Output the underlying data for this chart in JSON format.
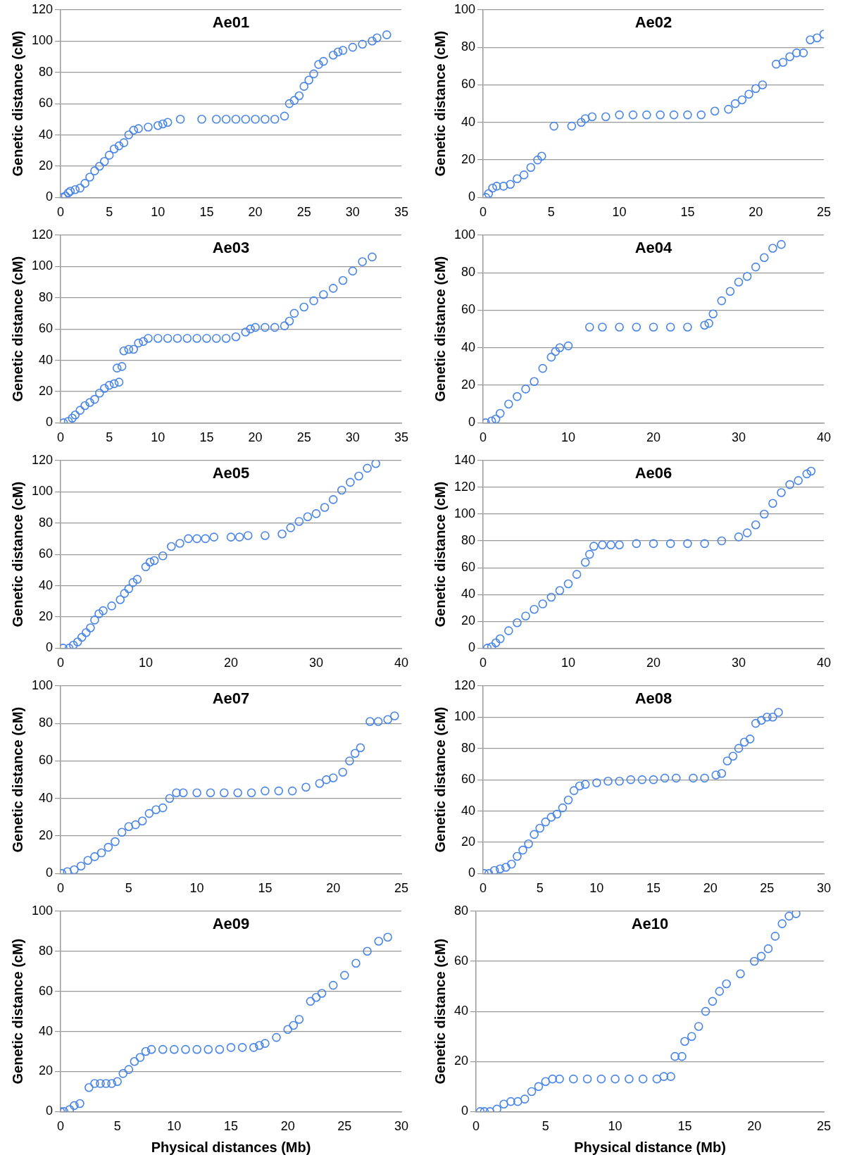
{
  "chart_data": [
    {
      "type": "scatter",
      "title": "Ae01",
      "ylabel": "Genetic distance (cM)",
      "xlim": [
        0,
        35
      ],
      "xticks": [
        0,
        5,
        10,
        15,
        20,
        25,
        30,
        35
      ],
      "ylim": [
        0,
        120
      ],
      "yticks": [
        0,
        20,
        40,
        60,
        80,
        100,
        120
      ],
      "grid": "y",
      "marker": "circle",
      "legend": false,
      "series": [
        {
          "color": "#4a86e8",
          "x": [
            0.2,
            0.5,
            0.8,
            1,
            1.5,
            2,
            2.5,
            3,
            3.5,
            4,
            4.5,
            5,
            5.5,
            6,
            6.5,
            7,
            7.5,
            8,
            9,
            10,
            10.5,
            11,
            12.3,
            14.5,
            16,
            17,
            18,
            19,
            20,
            21,
            22,
            23,
            23.5,
            24,
            24.5,
            25,
            25.5,
            26,
            26.5,
            27,
            28,
            28.5,
            29,
            30,
            31,
            32,
            32.5,
            33.5
          ],
          "values": [
            0,
            1,
            3,
            4,
            5,
            6,
            9,
            13,
            17,
            20,
            23,
            27,
            31,
            33,
            35,
            40,
            43,
            44,
            45,
            46,
            47,
            48,
            50,
            50,
            50,
            50,
            50,
            50,
            50,
            50,
            50,
            52,
            60,
            62,
            65,
            71,
            75,
            79,
            85,
            87,
            91,
            93,
            94,
            96,
            98,
            100,
            102,
            104
          ]
        }
      ]
    },
    {
      "type": "scatter",
      "title": "Ae02",
      "ylabel": "Genetic distance (cM)",
      "xlim": [
        0,
        25
      ],
      "xticks": [
        0,
        5,
        10,
        15,
        20,
        25
      ],
      "ylim": [
        0,
        100
      ],
      "yticks": [
        0,
        20,
        40,
        60,
        80,
        100
      ],
      "grid": "y",
      "marker": "circle",
      "legend": false,
      "series": [
        {
          "color": "#4a86e8",
          "x": [
            0.2,
            0.4,
            0.7,
            1,
            1.5,
            2,
            2.5,
            3,
            3.5,
            4,
            4.3,
            5.2,
            6.5,
            7.2,
            7.5,
            8,
            9,
            10,
            11,
            12,
            13,
            14,
            15,
            16,
            17,
            18,
            18.5,
            19,
            19.5,
            20,
            20.5,
            21.5,
            22,
            22.5,
            23,
            23.5,
            24,
            24.5,
            25
          ],
          "values": [
            0,
            2,
            5,
            6,
            6,
            7,
            10,
            12,
            16,
            20,
            22,
            38,
            38,
            40,
            42,
            43,
            43,
            44,
            44,
            44,
            44,
            44,
            44,
            44,
            46,
            47,
            50,
            52,
            55,
            58,
            60,
            71,
            72,
            75,
            77,
            77,
            84,
            85,
            87
          ]
        }
      ]
    },
    {
      "type": "scatter",
      "title": "Ae03",
      "ylabel": "Genetic distance (cM)",
      "xlim": [
        0,
        35
      ],
      "xticks": [
        0,
        5,
        10,
        15,
        20,
        25,
        30,
        35
      ],
      "ylim": [
        0,
        120
      ],
      "yticks": [
        0,
        20,
        40,
        60,
        80,
        100,
        120
      ],
      "grid": "y",
      "marker": "circle",
      "legend": false,
      "series": [
        {
          "color": "#4a86e8",
          "x": [
            0.3,
            0.8,
            1.2,
            1.5,
            2,
            2.5,
            3,
            3.5,
            4,
            4.5,
            5,
            5.5,
            6,
            5.8,
            6.3,
            6.5,
            7,
            7.5,
            8,
            8.5,
            9,
            10,
            11,
            12,
            13,
            14,
            15,
            16,
            17,
            18,
            19,
            19.5,
            20,
            21,
            22,
            23,
            23.5,
            24,
            25,
            26,
            27,
            28,
            29,
            30,
            31,
            32
          ],
          "values": [
            0,
            1,
            3,
            5,
            8,
            11,
            13,
            15,
            19,
            22,
            24,
            25,
            26,
            35,
            36,
            46,
            47,
            47,
            51,
            52,
            54,
            54,
            54,
            54,
            54,
            54,
            54,
            54,
            54,
            55,
            58,
            60,
            61,
            61,
            61,
            62,
            65,
            70,
            74,
            78,
            82,
            86,
            91,
            97,
            103,
            106
          ]
        }
      ]
    },
    {
      "type": "scatter",
      "title": "Ae04",
      "ylabel": "Genetic distance (cM)",
      "xlim": [
        0,
        40
      ],
      "xticks": [
        0,
        10,
        20,
        30,
        40
      ],
      "ylim": [
        0,
        100
      ],
      "yticks": [
        0,
        20,
        40,
        60,
        80,
        100
      ],
      "grid": "y",
      "marker": "circle",
      "legend": false,
      "series": [
        {
          "color": "#4a86e8",
          "x": [
            0.3,
            1,
            1.5,
            2,
            3,
            4,
            5,
            6,
            7,
            8,
            8.5,
            9,
            10,
            12.5,
            14,
            16,
            18,
            20,
            22,
            24,
            26,
            26.5,
            27,
            28,
            29,
            30,
            31,
            32,
            33,
            34,
            35
          ],
          "values": [
            0,
            1,
            2,
            5,
            10,
            14,
            18,
            22,
            29,
            35,
            38,
            40,
            41,
            51,
            51,
            51,
            51,
            51,
            51,
            51,
            52,
            53,
            58,
            65,
            70,
            75,
            78,
            83,
            88,
            93,
            95
          ]
        }
      ]
    },
    {
      "type": "scatter",
      "title": "Ae05",
      "ylabel": "Genetic distance (cM)",
      "xlim": [
        0,
        40
      ],
      "xticks": [
        0,
        10,
        20,
        30,
        40
      ],
      "ylim": [
        0,
        120
      ],
      "yticks": [
        0,
        20,
        40,
        60,
        80,
        100,
        120
      ],
      "grid": "y",
      "marker": "circle",
      "legend": false,
      "series": [
        {
          "color": "#4a86e8",
          "x": [
            0.3,
            1,
            1.5,
            2,
            2.5,
            3,
            3.5,
            4,
            4.5,
            5,
            6,
            7,
            7.5,
            8,
            8.5,
            9,
            10,
            10.5,
            11,
            12,
            13,
            14,
            15,
            16,
            17,
            18,
            20,
            21,
            22,
            24,
            26,
            27,
            28,
            29,
            30,
            31,
            32,
            33,
            34,
            35,
            36,
            37
          ],
          "values": [
            0,
            0,
            2,
            4,
            7,
            10,
            13,
            18,
            22,
            24,
            27,
            31,
            35,
            38,
            42,
            44,
            52,
            55,
            56,
            59,
            65,
            67,
            70,
            70,
            70,
            71,
            71,
            71,
            72,
            72,
            73,
            77,
            81,
            84,
            86,
            90,
            95,
            101,
            106,
            110,
            115,
            118
          ]
        }
      ]
    },
    {
      "type": "scatter",
      "title": "Ae06",
      "ylabel": "Genetic distance (cM)",
      "xlim": [
        0,
        40
      ],
      "xticks": [
        0,
        10,
        20,
        30,
        40
      ],
      "ylim": [
        0,
        140
      ],
      "yticks": [
        0,
        20,
        40,
        60,
        80,
        100,
        120,
        140
      ],
      "grid": "y",
      "marker": "circle",
      "legend": false,
      "series": [
        {
          "color": "#4a86e8",
          "x": [
            0.5,
            1,
            1.5,
            2,
            3,
            4,
            5,
            6,
            7,
            8,
            9,
            10,
            11,
            12,
            12.5,
            13,
            14,
            15,
            16,
            18,
            20,
            22,
            24,
            26,
            28,
            30,
            31,
            32,
            33,
            34,
            35,
            36,
            37,
            38,
            38.5
          ],
          "values": [
            0,
            1,
            4,
            7,
            13,
            19,
            24,
            29,
            33,
            38,
            43,
            48,
            55,
            64,
            70,
            76,
            77,
            77,
            77,
            78,
            78,
            78,
            78,
            78,
            80,
            83,
            86,
            92,
            100,
            108,
            116,
            122,
            125,
            130,
            132
          ]
        }
      ]
    },
    {
      "type": "scatter",
      "title": "Ae07",
      "ylabel": "Genetic distance (cM)",
      "xlim": [
        0,
        25
      ],
      "xticks": [
        0,
        5,
        10,
        15,
        20,
        25
      ],
      "ylim": [
        0,
        100
      ],
      "yticks": [
        0,
        20,
        40,
        60,
        80,
        100
      ],
      "grid": "y",
      "marker": "circle",
      "legend": false,
      "series": [
        {
          "color": "#4a86e8",
          "x": [
            0.1,
            0.5,
            1,
            1.5,
            2,
            2.5,
            3,
            3.5,
            4,
            4.5,
            5,
            5.5,
            6,
            6.5,
            7,
            7.5,
            8,
            8.5,
            9,
            10,
            11,
            12,
            13,
            14,
            15,
            16,
            17,
            18,
            19,
            19.5,
            20,
            20.7,
            21.2,
            21.6,
            22,
            22.7,
            23.3,
            24,
            24.5
          ],
          "values": [
            0,
            1,
            2,
            4,
            7,
            9,
            11,
            14,
            17,
            22,
            25,
            26,
            28,
            32,
            34,
            35,
            40,
            43,
            43,
            43,
            43,
            43,
            43,
            43,
            44,
            44,
            44,
            46,
            48,
            50,
            51,
            54,
            60,
            64,
            67,
            81,
            81,
            82,
            84
          ]
        }
      ]
    },
    {
      "type": "scatter",
      "title": "Ae08",
      "ylabel": "Genetic distance (cM)",
      "xlim": [
        0,
        30
      ],
      "xticks": [
        0,
        5,
        10,
        15,
        20,
        25,
        30
      ],
      "ylim": [
        0,
        120
      ],
      "yticks": [
        0,
        20,
        40,
        60,
        80,
        100,
        120
      ],
      "grid": "y",
      "marker": "circle",
      "legend": false,
      "series": [
        {
          "color": "#4a86e8",
          "x": [
            0.1,
            0.5,
            1,
            1.5,
            2,
            2.5,
            3,
            3.5,
            4,
            4.5,
            5,
            5.5,
            6,
            6.5,
            7,
            7.5,
            8,
            8.5,
            9,
            10,
            11,
            12,
            13,
            14,
            15,
            16,
            17,
            18.5,
            19.5,
            20.5,
            21,
            21.5,
            22,
            22.5,
            23,
            23.5,
            24,
            24.5,
            25,
            25.5,
            26
          ],
          "values": [
            0,
            0,
            2,
            3,
            4,
            6,
            11,
            15,
            19,
            25,
            29,
            33,
            36,
            38,
            42,
            47,
            53,
            56,
            57,
            58,
            59,
            59,
            60,
            60,
            60,
            61,
            61,
            61,
            61,
            63,
            64,
            72,
            75,
            80,
            84,
            86,
            96,
            98,
            100,
            100,
            103
          ]
        }
      ]
    },
    {
      "type": "scatter",
      "title": "Ae09",
      "ylabel": "Genetic distance (cM)",
      "xlabel": "Physical distances (Mb)",
      "xlim": [
        0,
        30
      ],
      "xticks": [
        0,
        5,
        10,
        15,
        20,
        25,
        30
      ],
      "ylim": [
        0,
        100
      ],
      "yticks": [
        0,
        20,
        40,
        60,
        80,
        100
      ],
      "grid": "y",
      "marker": "circle",
      "legend": false,
      "series": [
        {
          "color": "#4a86e8",
          "x": [
            0,
            0.3,
            0.8,
            1.2,
            1.7,
            2.5,
            3,
            3.5,
            4,
            4.5,
            5,
            5.5,
            6,
            6.5,
            7,
            7.5,
            8,
            9,
            10,
            11,
            12,
            13,
            14,
            15,
            16,
            17,
            17.5,
            18,
            19,
            20,
            20.5,
            21,
            22,
            22.5,
            23,
            24,
            25,
            26,
            27,
            28,
            28.8
          ],
          "values": [
            0,
            0,
            1,
            3,
            4,
            12,
            14,
            14,
            14,
            14,
            15,
            19,
            21,
            25,
            27,
            30,
            31,
            31,
            31,
            31,
            31,
            31,
            31,
            32,
            32,
            32,
            33,
            34,
            37,
            41,
            43,
            46,
            55,
            57,
            59,
            63,
            68,
            74,
            80,
            85,
            87
          ]
        }
      ]
    },
    {
      "type": "scatter",
      "title": "Ae10",
      "ylabel": "Genetic distance (cM)",
      "xlabel": "Physical distance (Mb)",
      "xlim": [
        0,
        25
      ],
      "xticks": [
        0,
        5,
        10,
        15,
        20,
        25
      ],
      "ylim": [
        0,
        80
      ],
      "yticks": [
        0,
        20,
        40,
        60,
        80
      ],
      "grid": "y",
      "marker": "circle",
      "legend": false,
      "series": [
        {
          "color": "#4a86e8",
          "x": [
            0.3,
            0.6,
            1,
            1.5,
            2,
            2.5,
            3,
            3.5,
            4,
            4.5,
            5,
            5.5,
            6,
            7,
            8,
            9,
            10,
            11,
            12,
            13,
            13.5,
            14,
            14.3,
            14.8,
            15,
            15.5,
            16,
            16.5,
            17,
            17.5,
            18,
            19,
            20,
            20.5,
            21,
            21.5,
            22,
            22.5,
            23
          ],
          "values": [
            0,
            0,
            0,
            1,
            3,
            4,
            4,
            5,
            8,
            10,
            12,
            13,
            13,
            13,
            13,
            13,
            13,
            13,
            13,
            13,
            14,
            14,
            22,
            22,
            28,
            30,
            34,
            40,
            44,
            48,
            51,
            55,
            60,
            62,
            65,
            70,
            75,
            78,
            79
          ]
        }
      ]
    }
  ]
}
